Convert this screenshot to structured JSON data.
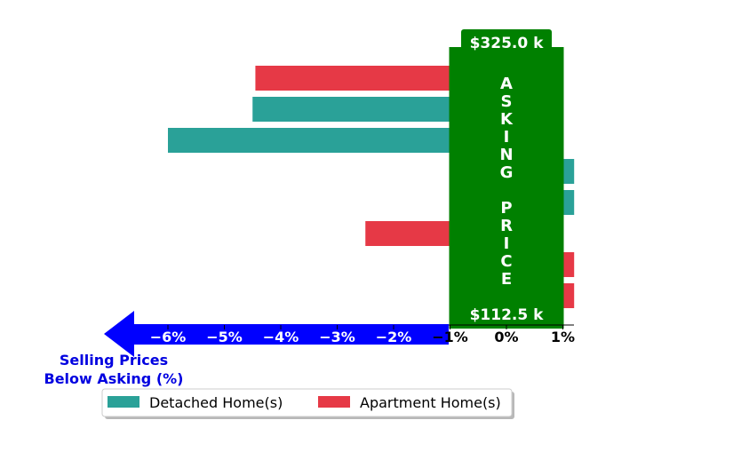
{
  "chart_data": {
    "type": "bar",
    "orientation": "horizontal",
    "xlabel": "Selling Prices\nBelow Asking (%)",
    "xlim": [
      -7,
      1.2
    ],
    "xticks": [
      "−6%",
      "−5%",
      "−4%",
      "−3%",
      "−2%",
      "−1%",
      "0%",
      "1%"
    ],
    "xtick_values": [
      -6,
      -5,
      -4,
      -3,
      -2,
      -1,
      0,
      1
    ],
    "band": {
      "label_letters": [
        "A",
        "S",
        "K",
        "I",
        "N",
        "G",
        "",
        "P",
        "R",
        "I",
        "C",
        "E"
      ],
      "top_label": "$325.0 k",
      "bottom_label": "$112.5 k",
      "x_range": [
        -1,
        1
      ]
    },
    "series": [
      {
        "name": "Detached Home(s)",
        "color": "#2aa198",
        "bars": [
          {
            "row": 1,
            "value": -4.5
          },
          {
            "row": 2,
            "value": -6.0
          },
          {
            "row": 3,
            "value": 1.2
          },
          {
            "row": 4,
            "value": 1.2
          }
        ]
      },
      {
        "name": "Apartment Home(s)",
        "color": "#e63946",
        "bars": [
          {
            "row": 0,
            "value": -4.45
          },
          {
            "row": 5,
            "value": -2.5
          },
          {
            "row": 6,
            "value": 1.2
          },
          {
            "row": 7,
            "value": 1.2
          }
        ]
      }
    ],
    "rows": 8,
    "legend_position": "bottom-center",
    "grid": false
  },
  "colors": {
    "band": "#008000",
    "arrow": "#0000ff",
    "label_text": "#0000e0"
  }
}
